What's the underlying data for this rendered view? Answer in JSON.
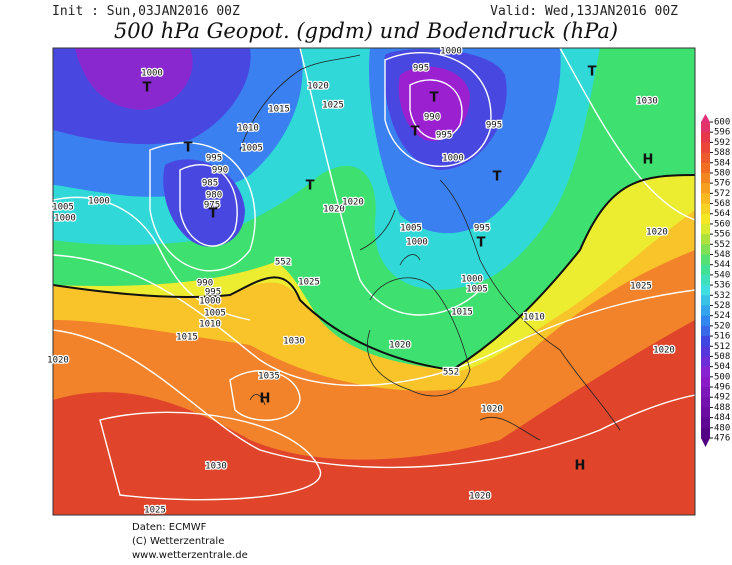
{
  "header": {
    "init": "Init : Sun,03JAN2016 00Z",
    "valid": "Valid: Wed,13JAN2016 00Z",
    "title": "500 hPa Geopot. (gpdm) und Bodendruck (hPa)"
  },
  "map": {
    "labels": [
      "1000",
      "T",
      "T",
      "1020",
      "1025",
      "1015",
      "1010",
      "1005",
      "995",
      "990",
      "985",
      "980",
      "975",
      "T",
      "1000",
      "1005",
      "1000",
      "T",
      "1020",
      "1020",
      "1025",
      "552",
      "990",
      "995",
      "1000",
      "1005",
      "1010",
      "1015",
      "1020",
      "1030",
      "1035",
      "H",
      "T",
      "990",
      "995",
      "1000",
      "995",
      "1000",
      "T",
      "995",
      "T",
      "1005",
      "1000",
      "995",
      "T",
      "1000",
      "1005",
      "1015",
      "1010",
      "1020",
      "552",
      "T",
      "1030",
      "H",
      "1020",
      "1025",
      "1020",
      "1020",
      "H",
      "1020",
      "1025",
      "1030"
    ]
  },
  "colorbar": {
    "ticks": [
      600,
      596,
      592,
      588,
      584,
      580,
      576,
      572,
      568,
      564,
      560,
      556,
      552,
      548,
      544,
      540,
      536,
      532,
      528,
      524,
      520,
      516,
      512,
      508,
      504,
      500,
      496,
      492,
      488,
      484,
      480,
      476
    ]
  },
  "footer": {
    "lines": [
      "Daten: ECMWF",
      "(C) Wetterzentrale",
      "www.wetterzentrale.de"
    ]
  }
}
